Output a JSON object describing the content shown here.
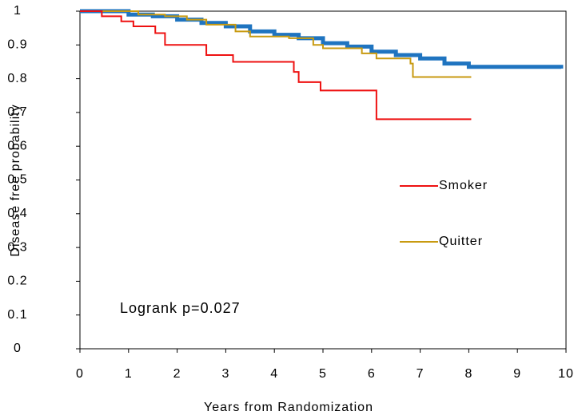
{
  "chart_data": {
    "type": "step",
    "xlabel": "Years from Randomization",
    "ylabel": "Disease free probability",
    "annotation": "Logrank p=0.027",
    "xlim": [
      0,
      10
    ],
    "ylim": [
      0,
      1
    ],
    "xticks": [
      0,
      1,
      2,
      3,
      4,
      5,
      6,
      7,
      8,
      9,
      10
    ],
    "yticks": [
      0,
      0.1,
      0.2,
      0.3,
      0.4,
      0.5,
      0.6,
      0.7,
      0.8,
      0.9,
      1
    ],
    "series": [
      {
        "name": "Smoker",
        "color": "#ee1111",
        "width": 2,
        "x": [
          0,
          0.45,
          0.85,
          1.1,
          1.55,
          1.75,
          2.6,
          3.15,
          4.4,
          4.5,
          4.95,
          6.1,
          8.05
        ],
        "values": [
          1,
          0.985,
          0.97,
          0.955,
          0.935,
          0.9,
          0.87,
          0.85,
          0.82,
          0.79,
          0.765,
          0.68,
          0.68
        ]
      },
      {
        "name": "Quitter",
        "color": "#c89a10",
        "width": 2,
        "x": [
          0,
          1.2,
          1.75,
          2.2,
          2.6,
          3.2,
          3.5,
          4.3,
          4.8,
          5.0,
          5.8,
          6.1,
          6.8,
          6.85,
          8.05
        ],
        "values": [
          1,
          0.99,
          0.985,
          0.975,
          0.96,
          0.94,
          0.925,
          0.92,
          0.9,
          0.89,
          0.875,
          0.86,
          0.845,
          0.805,
          0.805
        ]
      },
      {
        "color": "#1f74c0",
        "width": 5,
        "x": [
          0,
          1,
          1.5,
          2,
          2.5,
          3,
          3.5,
          4,
          4.5,
          5,
          5.5,
          6,
          6.5,
          7,
          7.5,
          8,
          9.9
        ],
        "values": [
          1,
          0.99,
          0.985,
          0.975,
          0.965,
          0.955,
          0.94,
          0.93,
          0.92,
          0.905,
          0.895,
          0.88,
          0.87,
          0.86,
          0.845,
          0.835,
          0.83
        ]
      }
    ]
  }
}
